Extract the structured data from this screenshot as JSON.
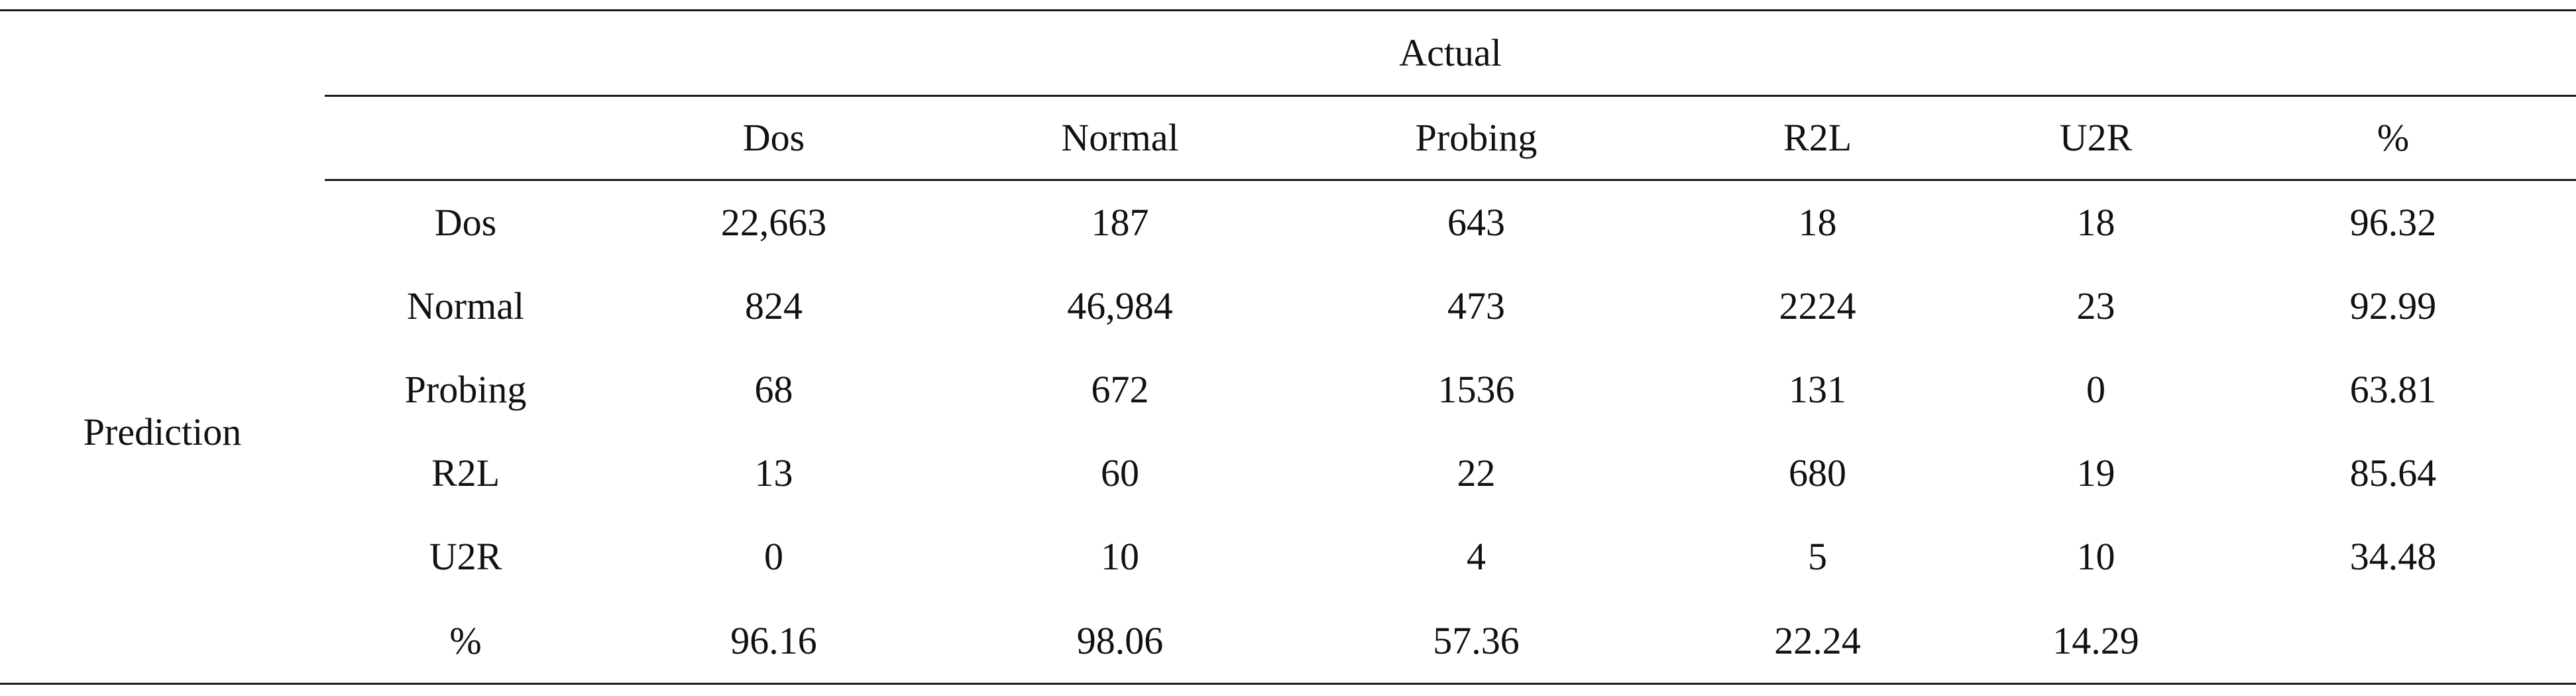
{
  "table": {
    "group_header": "Actual",
    "side_header": "Prediction",
    "columns": [
      "",
      "Dos",
      "Normal",
      "Probing",
      "R2L",
      "U2R",
      "%"
    ],
    "rows": [
      {
        "label": "Dos",
        "cells": [
          "22,663",
          "187",
          "643",
          "18",
          "18",
          "96.32"
        ]
      },
      {
        "label": "Normal",
        "cells": [
          "824",
          "46,984",
          "473",
          "2224",
          "23",
          "92.99"
        ]
      },
      {
        "label": "Probing",
        "cells": [
          "68",
          "672",
          "1536",
          "131",
          "0",
          "63.81"
        ]
      },
      {
        "label": "R2L",
        "cells": [
          "13",
          "60",
          "22",
          "680",
          "19",
          "85.64"
        ]
      },
      {
        "label": "U2R",
        "cells": [
          "0",
          "10",
          "4",
          "5",
          "10",
          "34.48"
        ]
      },
      {
        "label": "%",
        "cells": [
          "96.16",
          "98.06",
          "57.36",
          "22.24",
          "14.29",
          ""
        ]
      }
    ]
  }
}
